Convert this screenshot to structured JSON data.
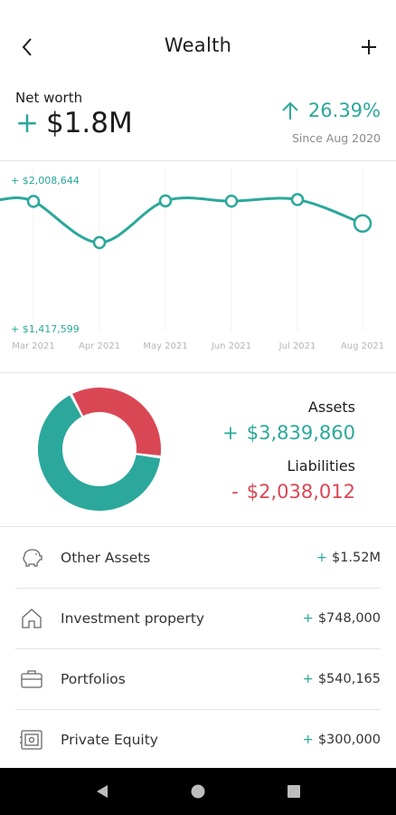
{
  "header": {
    "title": "Wealth",
    "back_icon": "chevron-left-icon",
    "add_icon": "plus-icon"
  },
  "summary": {
    "label": "Net worth",
    "sign": "+",
    "value": "$1.8M",
    "change": "26.39%",
    "change_direction": "up",
    "since": "Since Aug 2020"
  },
  "chart_data": {
    "type": "line",
    "x": [
      "Mar 2021",
      "Apr 2021",
      "May 2021",
      "Jun 2021",
      "Jul 2021",
      "Aug 2021"
    ],
    "values": [
      1928000,
      1764000,
      1930000,
      1929000,
      1935000,
      1840000
    ],
    "max_label": "+ $2,008,644",
    "min_label": "+ $1,417,599",
    "ylim": [
      1417599,
      2008644
    ],
    "color": "#2ba89b",
    "grid": true
  },
  "breakdown": {
    "assets_label": "Assets",
    "assets_sign": "+",
    "assets_value": "$3,839,860",
    "assets_amount": 3839860,
    "liabilities_label": "Liabilities",
    "liabilities_sign": "-",
    "liabilities_value": "$2,038,012",
    "liabilities_amount": 2038012,
    "assets_color": "#2ba89b",
    "liabilities_color": "#d94755"
  },
  "items": [
    {
      "icon": "piggy-bank-icon",
      "label": "Other Assets",
      "sign": "+",
      "value": "$1.52M"
    },
    {
      "icon": "house-icon",
      "label": "Investment property",
      "sign": "+",
      "value": "$748,000"
    },
    {
      "icon": "briefcase-icon",
      "label": "Portfolios",
      "sign": "+",
      "value": "$540,165"
    },
    {
      "icon": "safe-icon",
      "label": "Private Equity",
      "sign": "+",
      "value": "$300,000"
    }
  ],
  "navbar": {
    "back_icon": "triangle-back-icon",
    "home_icon": "circle-home-icon",
    "recents_icon": "square-recents-icon"
  }
}
